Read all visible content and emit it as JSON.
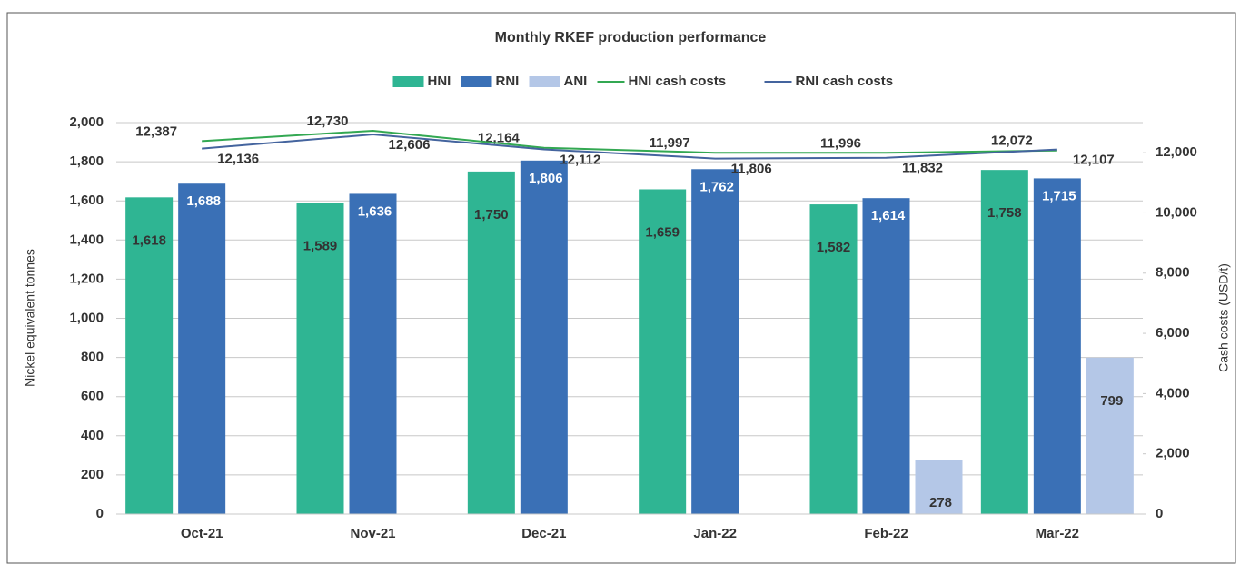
{
  "chart_data": {
    "type": "bar",
    "title": "Monthly RKEF production performance",
    "y_label": "Nickel equivalent tonnes",
    "y2_label": "Cash costs (USD/t)",
    "categories": [
      "Oct-21",
      "Nov-21",
      "Dec-21",
      "Jan-22",
      "Feb-22",
      "Mar-22"
    ],
    "series": [
      {
        "name": "HNI",
        "type": "bar",
        "color": "#2fb593",
        "values": [
          1618,
          1589,
          1750,
          1659,
          1582,
          1758
        ],
        "value_labels": [
          "1,618",
          "1,589",
          "1,750",
          "1,659",
          "1,582",
          "1,758"
        ]
      },
      {
        "name": "RNI",
        "type": "bar",
        "color": "#3a70b6",
        "values": [
          1688,
          1636,
          1806,
          1762,
          1614,
          1715
        ],
        "value_labels": [
          "1,688",
          "1,636",
          "1,806",
          "1,762",
          "1,614",
          "1,715"
        ]
      },
      {
        "name": "ANI",
        "type": "bar",
        "color": "#b4c7e7",
        "values": [
          null,
          null,
          null,
          null,
          278,
          799
        ],
        "value_labels": [
          null,
          null,
          null,
          null,
          "278",
          "799"
        ]
      },
      {
        "name": "HNI cash costs",
        "type": "line",
        "axis": "y2",
        "color": "#33a852",
        "values": [
          12387,
          12730,
          12164,
          11997,
          11996,
          12072
        ],
        "value_labels": [
          "12,387",
          "12,730",
          "12,164",
          "11,997",
          "11,996",
          "12,072"
        ]
      },
      {
        "name": "RNI cash costs",
        "type": "line",
        "axis": "y2",
        "color": "#44649e",
        "values": [
          12136,
          12606,
          12112,
          11806,
          11832,
          12107
        ],
        "value_labels": [
          "12,136",
          "12,606",
          "12,112",
          "11,806",
          "11,832",
          "12,107"
        ]
      }
    ],
    "ylim": [
      0,
      2000
    ],
    "yticks": [
      0,
      200,
      400,
      600,
      800,
      {
        "value": 1000,
        "label": "1,000"
      },
      {
        "value": 1200,
        "label": "1,200"
      },
      {
        "value": 1400,
        "label": "1,400"
      },
      {
        "value": 1600,
        "label": "1,600"
      },
      {
        "value": 1800,
        "label": "1,800"
      },
      {
        "value": 2000,
        "label": "2,000"
      }
    ],
    "y2lim": [
      0,
      13000
    ],
    "y2ticks": [
      0,
      {
        "value": 2000,
        "label": "2,000"
      },
      {
        "value": 4000,
        "label": "4,000"
      },
      {
        "value": 6000,
        "label": "6,000"
      },
      {
        "value": 8000,
        "label": "8,000"
      },
      {
        "value": 10000,
        "label": "10,000"
      },
      {
        "value": 12000,
        "label": "12,000"
      }
    ],
    "grid": true,
    "legend": "top"
  }
}
